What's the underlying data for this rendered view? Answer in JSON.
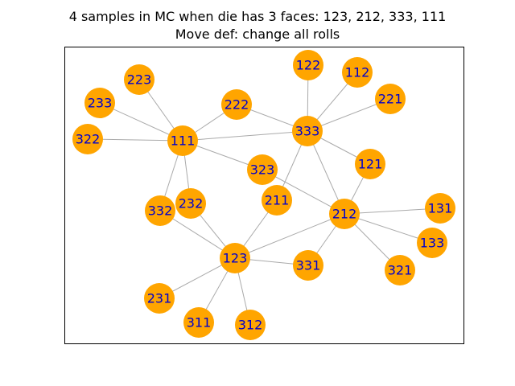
{
  "title": {
    "line1": "4 samples in MC when die has 3 faces: 123, 212, 333, 111",
    "line2": "Move def: change all rolls"
  },
  "colors": {
    "node": "#ffa500",
    "label": "#0000cc",
    "edge": "#aaaaaa",
    "frame": "#000000"
  },
  "nodes": [
    "111",
    "123",
    "212",
    "333",
    "223",
    "233",
    "322",
    "222",
    "332",
    "232",
    "231",
    "311",
    "312",
    "331",
    "211",
    "323",
    "121",
    "122",
    "112",
    "221",
    "131",
    "133",
    "321"
  ],
  "edges": [
    [
      "111",
      "223"
    ],
    [
      "111",
      "233"
    ],
    [
      "111",
      "322"
    ],
    [
      "111",
      "222"
    ],
    [
      "111",
      "332"
    ],
    [
      "111",
      "232"
    ],
    [
      "111",
      "333"
    ],
    [
      "111",
      "323"
    ],
    [
      "333",
      "122"
    ],
    [
      "333",
      "112"
    ],
    [
      "333",
      "221"
    ],
    [
      "333",
      "121"
    ],
    [
      "333",
      "211"
    ],
    [
      "333",
      "212"
    ],
    [
      "333",
      "222"
    ],
    [
      "212",
      "121"
    ],
    [
      "212",
      "131"
    ],
    [
      "212",
      "133"
    ],
    [
      "212",
      "321"
    ],
    [
      "212",
      "331"
    ],
    [
      "212",
      "323"
    ],
    [
      "212",
      "123"
    ],
    [
      "123",
      "232"
    ],
    [
      "123",
      "332"
    ],
    [
      "123",
      "231"
    ],
    [
      "123",
      "311"
    ],
    [
      "123",
      "312"
    ],
    [
      "123",
      "331"
    ],
    [
      "123",
      "211"
    ]
  ]
}
